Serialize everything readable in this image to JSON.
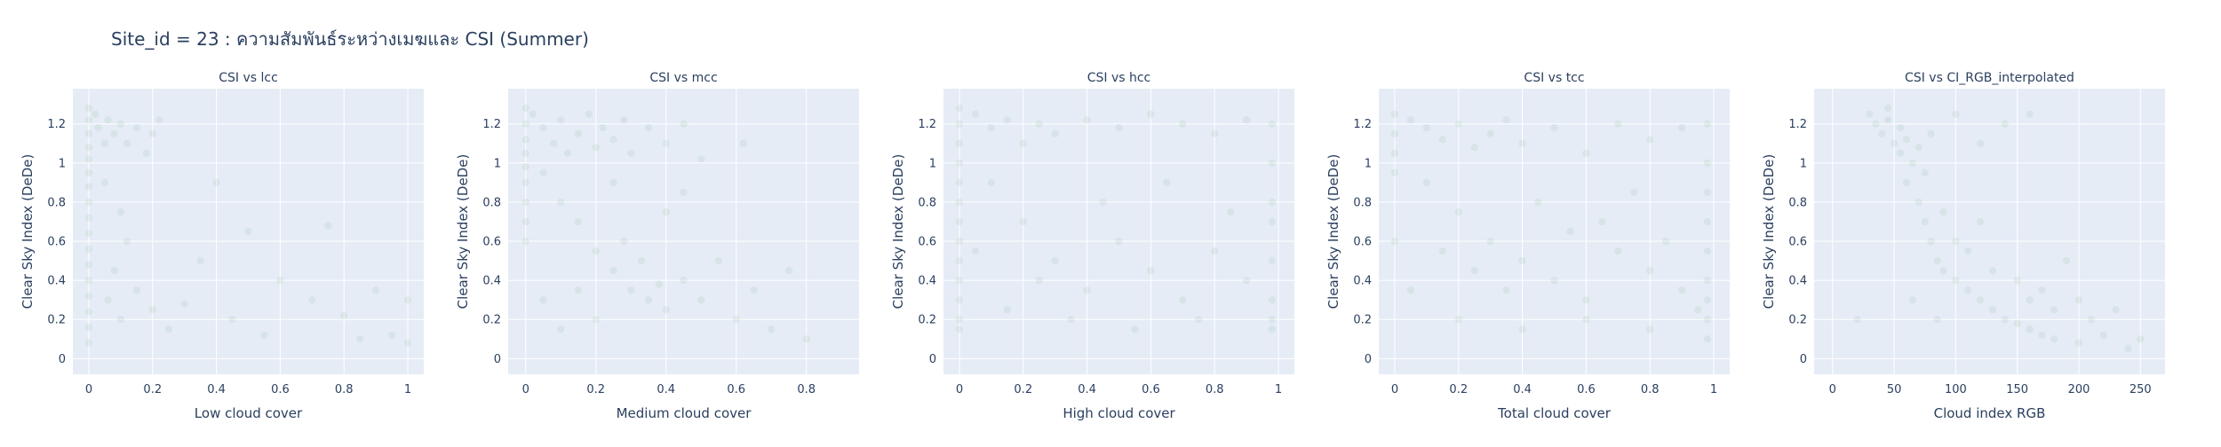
{
  "title": "Site_id = 23 : ความสัมพันธ์ระหว่างเมฆและ CSI (Summer)",
  "colors": {
    "plot_bg": "#e5ecf6",
    "grid": "#ffffff",
    "marker": "#006400",
    "text": "#2a3f5f"
  },
  "chart_data": [
    {
      "type": "scatter",
      "title": "CSI vs lcc",
      "xlabel": "Low cloud cover",
      "ylabel": "Clear Sky Index (DeDe)",
      "xlim": [
        -0.05,
        1.05
      ],
      "ylim": [
        -0.08,
        1.38
      ],
      "xticks": [
        0,
        0.2,
        0.4,
        0.6,
        0.8,
        1
      ],
      "xtick_labels": [
        "0",
        "0.2",
        "0.4",
        "0.6",
        "0.8",
        "1"
      ],
      "yticks": [
        0,
        0.2,
        0.4,
        0.6,
        0.8,
        1,
        1.2
      ],
      "ytick_labels": [
        "0",
        "0.2",
        "0.4",
        "0.6",
        "0.8",
        "1",
        "1.2"
      ],
      "grid": true,
      "marker_opacity": 0.06,
      "points": [
        [
          0.0,
          1.28
        ],
        [
          0.0,
          1.22
        ],
        [
          0.0,
          1.15
        ],
        [
          0.0,
          1.08
        ],
        [
          0.0,
          1.02
        ],
        [
          0.0,
          0.95
        ],
        [
          0.0,
          0.88
        ],
        [
          0.0,
          0.8
        ],
        [
          0.0,
          0.72
        ],
        [
          0.0,
          0.64
        ],
        [
          0.0,
          0.56
        ],
        [
          0.0,
          0.48
        ],
        [
          0.0,
          0.4
        ],
        [
          0.0,
          0.32
        ],
        [
          0.0,
          0.24
        ],
        [
          0.0,
          0.16
        ],
        [
          0.0,
          0.08
        ],
        [
          0.02,
          1.25
        ],
        [
          0.03,
          1.18
        ],
        [
          0.05,
          1.1
        ],
        [
          0.06,
          1.22
        ],
        [
          0.08,
          1.15
        ],
        [
          0.1,
          1.2
        ],
        [
          0.12,
          1.1
        ],
        [
          0.15,
          1.18
        ],
        [
          0.18,
          1.05
        ],
        [
          0.2,
          1.15
        ],
        [
          0.22,
          1.22
        ],
        [
          0.05,
          0.9
        ],
        [
          0.1,
          0.75
        ],
        [
          0.12,
          0.6
        ],
        [
          0.08,
          0.45
        ],
        [
          0.15,
          0.35
        ],
        [
          0.2,
          0.25
        ],
        [
          0.06,
          0.3
        ],
        [
          0.1,
          0.2
        ],
        [
          0.25,
          0.15
        ],
        [
          0.3,
          0.28
        ],
        [
          0.35,
          0.5
        ],
        [
          0.4,
          0.9
        ],
        [
          0.45,
          0.2
        ],
        [
          0.5,
          0.65
        ],
        [
          0.55,
          0.12
        ],
        [
          0.6,
          0.4
        ],
        [
          0.7,
          0.3
        ],
        [
          0.75,
          0.68
        ],
        [
          0.8,
          0.22
        ],
        [
          0.85,
          0.1
        ],
        [
          0.9,
          0.35
        ],
        [
          0.95,
          0.12
        ],
        [
          1.0,
          0.3
        ],
        [
          1.0,
          0.08
        ]
      ]
    },
    {
      "type": "scatter",
      "title": "CSI vs mcc",
      "xlabel": "Medium cloud cover",
      "ylabel": "Clear Sky Index (DeDe)",
      "xlim": [
        -0.05,
        0.95
      ],
      "ylim": [
        -0.08,
        1.38
      ],
      "xticks": [
        0,
        0.2,
        0.4,
        0.6,
        0.8
      ],
      "xtick_labels": [
        "0",
        "0.2",
        "0.4",
        "0.6",
        "0.8"
      ],
      "yticks": [
        0,
        0.2,
        0.4,
        0.6,
        0.8,
        1,
        1.2
      ],
      "ytick_labels": [
        "0",
        "0.2",
        "0.4",
        "0.6",
        "0.8",
        "1",
        "1.2"
      ],
      "grid": true,
      "marker_opacity": 0.06,
      "points": [
        [
          0.0,
          1.28
        ],
        [
          0.0,
          1.2
        ],
        [
          0.0,
          1.12
        ],
        [
          0.0,
          1.05
        ],
        [
          0.0,
          0.98
        ],
        [
          0.0,
          0.9
        ],
        [
          0.0,
          0.8
        ],
        [
          0.0,
          0.7
        ],
        [
          0.0,
          0.6
        ],
        [
          0.02,
          1.25
        ],
        [
          0.05,
          1.18
        ],
        [
          0.08,
          1.1
        ],
        [
          0.1,
          1.22
        ],
        [
          0.12,
          1.05
        ],
        [
          0.15,
          1.15
        ],
        [
          0.18,
          1.25
        ],
        [
          0.2,
          1.08
        ],
        [
          0.22,
          1.18
        ],
        [
          0.25,
          1.12
        ],
        [
          0.28,
          1.22
        ],
        [
          0.3,
          1.05
        ],
        [
          0.35,
          1.18
        ],
        [
          0.4,
          1.1
        ],
        [
          0.45,
          1.2
        ],
        [
          0.5,
          1.02
        ],
        [
          0.05,
          0.95
        ],
        [
          0.1,
          0.8
        ],
        [
          0.15,
          0.7
        ],
        [
          0.2,
          0.55
        ],
        [
          0.25,
          0.45
        ],
        [
          0.3,
          0.35
        ],
        [
          0.35,
          0.3
        ],
        [
          0.4,
          0.25
        ],
        [
          0.45,
          0.4
        ],
        [
          0.5,
          0.3
        ],
        [
          0.2,
          0.2
        ],
        [
          0.15,
          0.35
        ],
        [
          0.28,
          0.6
        ],
        [
          0.33,
          0.5
        ],
        [
          0.38,
          0.38
        ],
        [
          0.55,
          0.5
        ],
        [
          0.6,
          0.2
        ],
        [
          0.62,
          1.1
        ],
        [
          0.65,
          0.35
        ],
        [
          0.7,
          0.15
        ],
        [
          0.75,
          0.45
        ],
        [
          0.8,
          0.1
        ],
        [
          0.1,
          0.15
        ],
        [
          0.05,
          0.3
        ],
        [
          0.4,
          0.75
        ],
        [
          0.45,
          0.85
        ],
        [
          0.25,
          0.9
        ]
      ]
    },
    {
      "type": "scatter",
      "title": "CSI vs hcc",
      "xlabel": "High cloud cover",
      "ylabel": "Clear Sky Index (DeDe)",
      "xlim": [
        -0.05,
        1.05
      ],
      "ylim": [
        -0.08,
        1.38
      ],
      "xticks": [
        0,
        0.2,
        0.4,
        0.6,
        0.8,
        1
      ],
      "xtick_labels": [
        "0",
        "0.2",
        "0.4",
        "0.6",
        "0.8",
        "1"
      ],
      "yticks": [
        0,
        0.2,
        0.4,
        0.6,
        0.8,
        1,
        1.2
      ],
      "ytick_labels": [
        "0",
        "0.2",
        "0.4",
        "0.6",
        "0.8",
        "1",
        "1.2"
      ],
      "grid": true,
      "marker_opacity": 0.06,
      "points": [
        [
          0.0,
          1.28
        ],
        [
          0.0,
          1.2
        ],
        [
          0.0,
          1.1
        ],
        [
          0.0,
          1.0
        ],
        [
          0.0,
          0.9
        ],
        [
          0.0,
          0.8
        ],
        [
          0.0,
          0.7
        ],
        [
          0.0,
          0.6
        ],
        [
          0.0,
          0.5
        ],
        [
          0.0,
          0.4
        ],
        [
          0.0,
          0.3
        ],
        [
          0.0,
          0.2
        ],
        [
          0.0,
          0.15
        ],
        [
          0.05,
          1.25
        ],
        [
          0.1,
          1.18
        ],
        [
          0.15,
          1.22
        ],
        [
          0.2,
          1.1
        ],
        [
          0.25,
          1.2
        ],
        [
          0.3,
          1.15
        ],
        [
          0.4,
          1.22
        ],
        [
          0.5,
          1.18
        ],
        [
          0.6,
          1.25
        ],
        [
          0.7,
          1.2
        ],
        [
          0.8,
          1.15
        ],
        [
          0.9,
          1.22
        ],
        [
          0.1,
          0.9
        ],
        [
          0.2,
          0.7
        ],
        [
          0.3,
          0.5
        ],
        [
          0.4,
          0.35
        ],
        [
          0.5,
          0.6
        ],
        [
          0.6,
          0.45
        ],
        [
          0.7,
          0.3
        ],
        [
          0.8,
          0.55
        ],
        [
          0.9,
          0.4
        ],
        [
          0.15,
          0.25
        ],
        [
          0.35,
          0.2
        ],
        [
          0.55,
          0.15
        ],
        [
          0.75,
          0.2
        ],
        [
          0.98,
          1.2
        ],
        [
          0.98,
          1.0
        ],
        [
          0.98,
          0.8
        ],
        [
          0.98,
          0.7
        ],
        [
          0.98,
          0.5
        ],
        [
          0.98,
          0.3
        ],
        [
          0.98,
          0.2
        ],
        [
          0.98,
          0.15
        ],
        [
          0.45,
          0.8
        ],
        [
          0.65,
          0.9
        ],
        [
          0.85,
          0.75
        ],
        [
          0.25,
          0.4
        ],
        [
          0.05,
          0.55
        ]
      ]
    },
    {
      "type": "scatter",
      "title": "CSI vs tcc",
      "xlabel": "Total cloud cover",
      "ylabel": "Clear Sky Index (DeDe)",
      "xlim": [
        -0.05,
        1.05
      ],
      "ylim": [
        -0.08,
        1.38
      ],
      "xticks": [
        0,
        0.2,
        0.4,
        0.6,
        0.8,
        1
      ],
      "xtick_labels": [
        "0",
        "0.2",
        "0.4",
        "0.6",
        "0.8",
        "1"
      ],
      "yticks": [
        0,
        0.2,
        0.4,
        0.6,
        0.8,
        1,
        1.2
      ],
      "ytick_labels": [
        "0",
        "0.2",
        "0.4",
        "0.6",
        "0.8",
        "1",
        "1.2"
      ],
      "grid": true,
      "marker_opacity": 0.06,
      "points": [
        [
          0.0,
          1.25
        ],
        [
          0.0,
          1.15
        ],
        [
          0.0,
          1.05
        ],
        [
          0.0,
          0.95
        ],
        [
          0.0,
          0.6
        ],
        [
          0.05,
          1.22
        ],
        [
          0.1,
          1.18
        ],
        [
          0.15,
          1.12
        ],
        [
          0.2,
          1.2
        ],
        [
          0.25,
          1.08
        ],
        [
          0.3,
          1.15
        ],
        [
          0.35,
          1.22
        ],
        [
          0.4,
          1.1
        ],
        [
          0.5,
          1.18
        ],
        [
          0.6,
          1.05
        ],
        [
          0.7,
          1.2
        ],
        [
          0.8,
          1.12
        ],
        [
          0.9,
          1.18
        ],
        [
          0.1,
          0.9
        ],
        [
          0.2,
          0.75
        ],
        [
          0.3,
          0.6
        ],
        [
          0.4,
          0.5
        ],
        [
          0.5,
          0.4
        ],
        [
          0.6,
          0.3
        ],
        [
          0.7,
          0.55
        ],
        [
          0.8,
          0.45
        ],
        [
          0.9,
          0.35
        ],
        [
          0.2,
          0.2
        ],
        [
          0.4,
          0.15
        ],
        [
          0.6,
          0.2
        ],
        [
          0.8,
          0.15
        ],
        [
          0.95,
          0.25
        ],
        [
          0.98,
          1.2
        ],
        [
          0.98,
          1.0
        ],
        [
          0.98,
          0.85
        ],
        [
          0.98,
          0.7
        ],
        [
          0.98,
          0.55
        ],
        [
          0.98,
          0.4
        ],
        [
          0.98,
          0.3
        ],
        [
          0.98,
          0.2
        ],
        [
          0.98,
          0.1
        ],
        [
          0.45,
          0.8
        ],
        [
          0.55,
          0.65
        ],
        [
          0.65,
          0.7
        ],
        [
          0.75,
          0.85
        ],
        [
          0.85,
          0.6
        ],
        [
          0.35,
          0.35
        ],
        [
          0.25,
          0.45
        ],
        [
          0.15,
          0.55
        ],
        [
          0.05,
          0.35
        ]
      ]
    },
    {
      "type": "scatter",
      "title": "CSI vs CI_RGB_interpolated",
      "xlabel": "Cloud index RGB",
      "ylabel": "Clear Sky Index (DeDe)",
      "xlim": [
        -15,
        270
      ],
      "ylim": [
        -0.08,
        1.38
      ],
      "xticks": [
        0,
        50,
        100,
        150,
        200,
        250
      ],
      "xtick_labels": [
        "0",
        "50",
        "100",
        "150",
        "200",
        "250"
      ],
      "yticks": [
        0,
        0.2,
        0.4,
        0.6,
        0.8,
        1,
        1.2
      ],
      "ytick_labels": [
        "0",
        "0.2",
        "0.4",
        "0.6",
        "0.8",
        "1",
        "1.2"
      ],
      "grid": true,
      "marker_opacity": 0.06,
      "points": [
        [
          30,
          1.25
        ],
        [
          35,
          1.2
        ],
        [
          40,
          1.15
        ],
        [
          45,
          1.22
        ],
        [
          50,
          1.1
        ],
        [
          55,
          1.05
        ],
        [
          60,
          1.12
        ],
        [
          65,
          1.0
        ],
        [
          70,
          1.08
        ],
        [
          75,
          0.95
        ],
        [
          80,
          1.15
        ],
        [
          45,
          1.28
        ],
        [
          55,
          1.18
        ],
        [
          60,
          0.9
        ],
        [
          70,
          0.8
        ],
        [
          75,
          0.7
        ],
        [
          80,
          0.6
        ],
        [
          85,
          0.5
        ],
        [
          90,
          0.45
        ],
        [
          100,
          0.4
        ],
        [
          110,
          0.35
        ],
        [
          120,
          0.3
        ],
        [
          130,
          0.25
        ],
        [
          140,
          0.2
        ],
        [
          150,
          0.18
        ],
        [
          160,
          0.15
        ],
        [
          170,
          0.12
        ],
        [
          180,
          0.1
        ],
        [
          200,
          0.08
        ],
        [
          220,
          0.12
        ],
        [
          240,
          0.05
        ],
        [
          100,
          0.6
        ],
        [
          110,
          0.55
        ],
        [
          120,
          0.7
        ],
        [
          90,
          0.75
        ],
        [
          130,
          0.45
        ],
        [
          150,
          0.4
        ],
        [
          160,
          0.3
        ],
        [
          170,
          0.35
        ],
        [
          180,
          0.25
        ],
        [
          200,
          0.3
        ],
        [
          210,
          0.2
        ],
        [
          120,
          1.1
        ],
        [
          140,
          1.2
        ],
        [
          160,
          1.25
        ],
        [
          190,
          0.5
        ],
        [
          20,
          0.2
        ],
        [
          65,
          0.3
        ],
        [
          85,
          0.2
        ],
        [
          100,
          1.25
        ],
        [
          230,
          0.25
        ],
        [
          250,
          0.1
        ]
      ]
    }
  ]
}
